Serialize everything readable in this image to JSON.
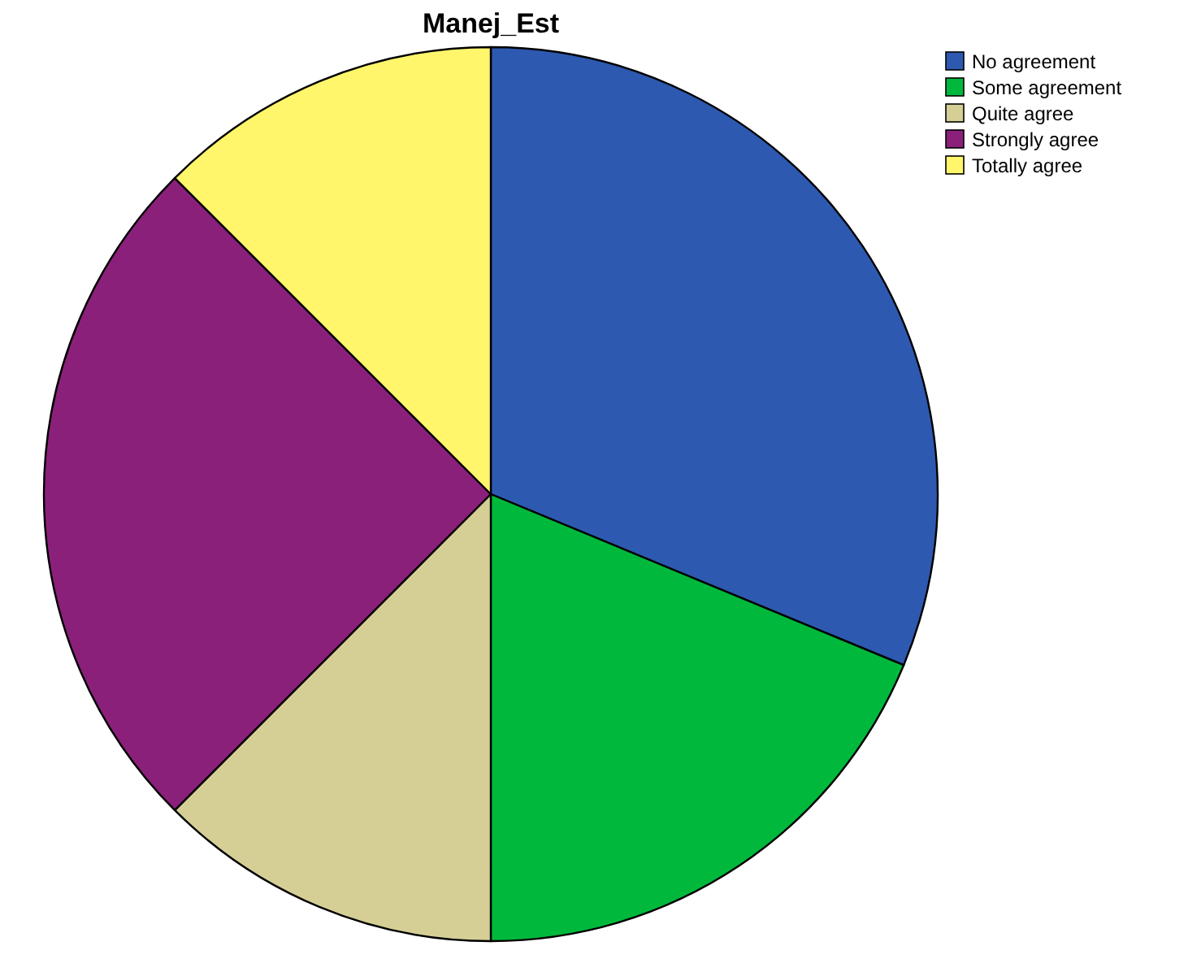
{
  "chart_data": {
    "type": "pie",
    "title": "Manej_Est",
    "categories": [
      "No agreement",
      "Some agreement",
      "Quite agree",
      "Strongly agree",
      "Totally agree"
    ],
    "values": [
      31.25,
      18.75,
      12.5,
      25,
      12.5
    ],
    "colors": [
      "#2d59b0",
      "#00b93c",
      "#d5cf96",
      "#8b207a",
      "#fff66c"
    ],
    "legend": "top right"
  }
}
